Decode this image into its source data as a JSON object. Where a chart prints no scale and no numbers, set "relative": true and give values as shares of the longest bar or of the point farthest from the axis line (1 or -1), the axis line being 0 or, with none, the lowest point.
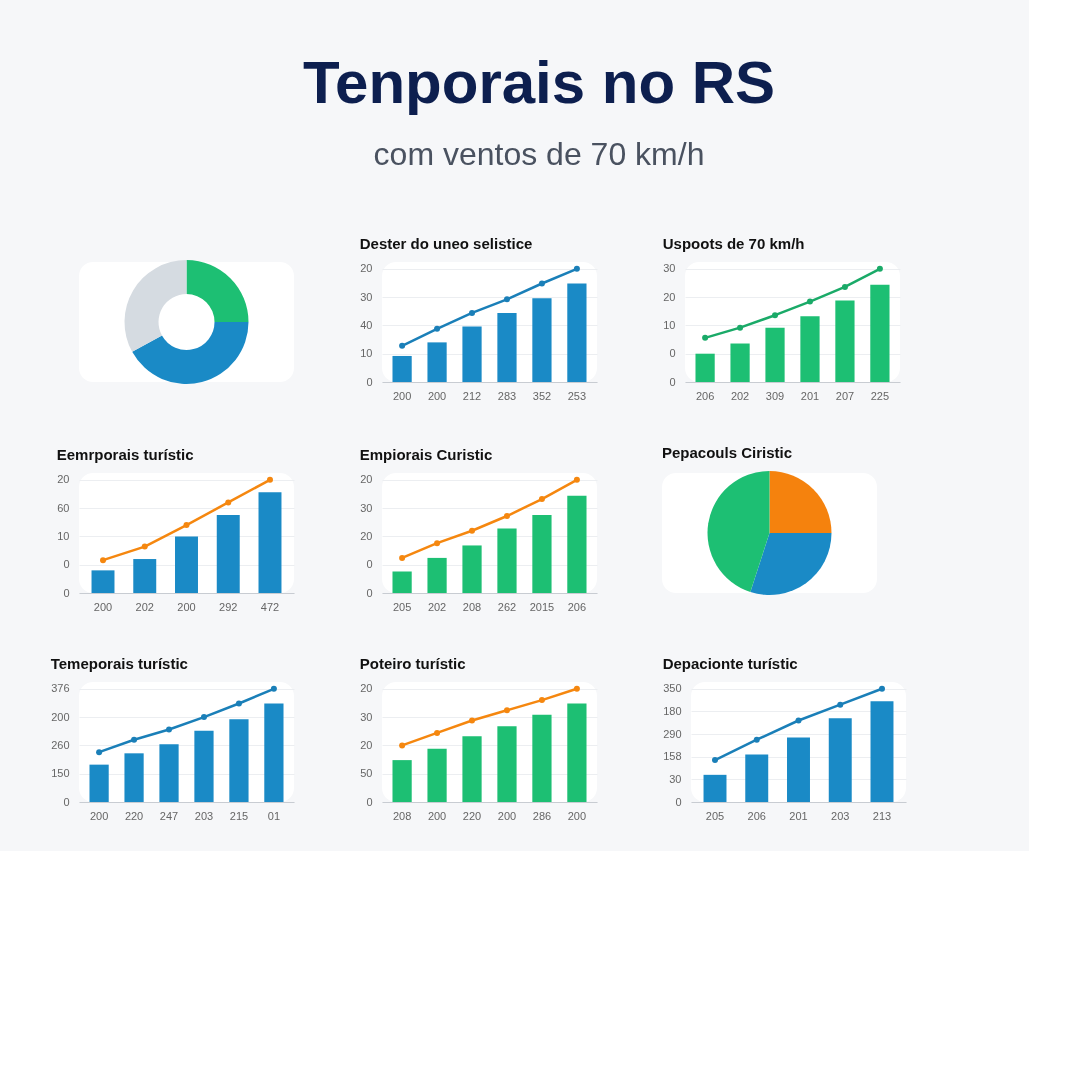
{
  "chart_data": [
    {
      "type": "other",
      "title": "Tenporais no RS",
      "subtitle": "com ventos de 70 km/h"
    },
    {
      "type": "donut",
      "categories": [
        null,
        null,
        null
      ],
      "values": [
        25,
        42,
        33
      ],
      "colors": [
        "#1dbf73",
        "#1a8ac6",
        "#d5dbe1"
      ]
    },
    {
      "type": "bar",
      "relative": true,
      "title": "Dester do uneo selistice",
      "categories": [
        "200",
        "200",
        "212",
        "283",
        "352",
        "253"
      ],
      "annotations": [
        "0",
        "10",
        "40",
        "30",
        "20"
      ],
      "grid": "y",
      "marker": "circle",
      "series": [
        {
          "type": "bar",
          "color": "#1a8ac6",
          "values": [
            0.23,
            0.35,
            0.49,
            0.61,
            0.74,
            0.87
          ]
        },
        {
          "type": "line",
          "color": "#1a7fb8",
          "values": [
            0.32,
            0.47,
            0.61,
            0.73,
            0.87,
            1
          ]
        }
      ]
    },
    {
      "type": "bar",
      "relative": true,
      "title": "Uspoots de 70 km/h",
      "categories": [
        "206",
        "202",
        "309",
        "201",
        "207",
        "225"
      ],
      "annotations": [
        "0",
        "0",
        "10",
        "20",
        "30"
      ],
      "grid": "y",
      "marker": "circle",
      "series": [
        {
          "type": "bar",
          "color": "#1dbf73",
          "values": [
            0.25,
            0.34,
            0.48,
            0.58,
            0.72,
            0.86
          ]
        },
        {
          "type": "line",
          "color": "#1aaa68",
          "values": [
            0.39,
            0.48,
            0.59,
            0.71,
            0.84,
            1
          ]
        }
      ]
    },
    {
      "type": "bar",
      "relative": true,
      "title": "Eemrporais turístic",
      "categories": [
        "200",
        "202",
        "200",
        "292",
        "472"
      ],
      "annotations": [
        "0",
        "0",
        "10",
        "60",
        "20"
      ],
      "grid": "y",
      "marker": "circle",
      "series": [
        {
          "type": "bar",
          "color": "#1a8ac6",
          "values": [
            0.2,
            0.3,
            0.5,
            0.69,
            0.89
          ]
        },
        {
          "type": "line",
          "color": "#f5870f",
          "values": [
            0.29,
            0.41,
            0.6,
            0.8,
            1
          ]
        }
      ]
    },
    {
      "type": "bar",
      "relative": true,
      "title": "Empiorais Curistic",
      "categories": [
        "205",
        "202",
        "208",
        "262",
        "2015",
        "206"
      ],
      "annotations": [
        "0",
        "0",
        "20",
        "30",
        "20"
      ],
      "grid": "y",
      "marker": "circle",
      "series": [
        {
          "type": "bar",
          "color": "#1dbf73",
          "values": [
            0.19,
            0.31,
            0.42,
            0.57,
            0.69,
            0.86
          ]
        },
        {
          "type": "line",
          "color": "#f5870f",
          "values": [
            0.31,
            0.44,
            0.55,
            0.68,
            0.83,
            1
          ]
        }
      ]
    },
    {
      "type": "pie",
      "title": "Pepacouls Ciristic",
      "categories": [
        null,
        null,
        null
      ],
      "values": [
        25,
        30,
        45
      ],
      "colors": [
        "#f5820d",
        "#1a8ac6",
        "#1dbf73"
      ]
    },
    {
      "type": "bar",
      "relative": true,
      "title": "Temeporais turístic",
      "categories": [
        "200",
        "220",
        "247",
        "203",
        "215",
        "01"
      ],
      "annotations": [
        "0",
        "150",
        "260",
        "200",
        "376"
      ],
      "grid": "y",
      "marker": "circle",
      "series": [
        {
          "type": "bar",
          "color": "#1a8ac6",
          "values": [
            0.33,
            0.43,
            0.51,
            0.63,
            0.73,
            0.87
          ]
        },
        {
          "type": "line",
          "color": "#1a7fb8",
          "values": [
            0.44,
            0.55,
            0.64,
            0.75,
            0.87,
            1
          ]
        }
      ]
    },
    {
      "type": "bar",
      "relative": true,
      "title": "Poteiro turístic",
      "categories": [
        "208",
        "200",
        "220",
        "200",
        "286",
        "200"
      ],
      "annotations": [
        "0",
        "50",
        "20",
        "30",
        "20"
      ],
      "grid": "y",
      "marker": "circle",
      "series": [
        {
          "type": "bar",
          "color": "#1dbf73",
          "values": [
            0.37,
            0.47,
            0.58,
            0.67,
            0.77,
            0.87
          ]
        },
        {
          "type": "line",
          "color": "#f5870f",
          "values": [
            0.5,
            0.61,
            0.72,
            0.81,
            0.9,
            1
          ]
        }
      ]
    },
    {
      "type": "bar",
      "relative": true,
      "title": "Depacionte turístic",
      "categories": [
        "205",
        "206",
        "201",
        "203",
        "213"
      ],
      "annotations": [
        "0",
        "30",
        "158",
        "290",
        "180",
        "350"
      ],
      "grid": "y",
      "marker": "circle",
      "series": [
        {
          "type": "bar",
          "color": "#1a8ac6",
          "values": [
            0.24,
            0.42,
            0.57,
            0.74,
            0.89
          ]
        },
        {
          "type": "line",
          "color": "#1a7fb8",
          "values": [
            0.37,
            0.55,
            0.72,
            0.86,
            1
          ]
        }
      ]
    }
  ]
}
